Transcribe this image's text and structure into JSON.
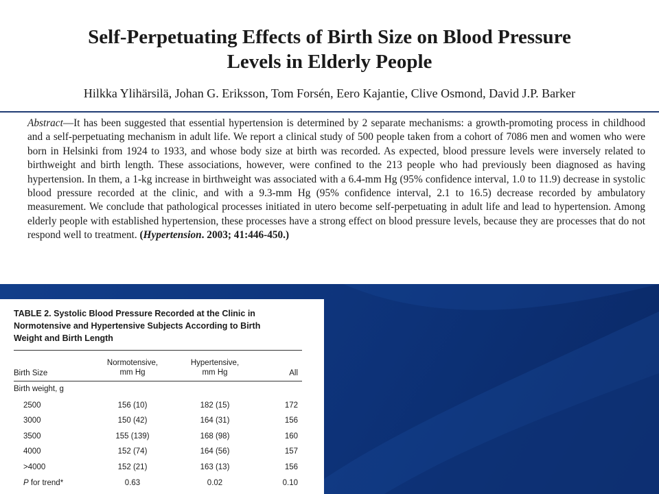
{
  "paper": {
    "title_lines": [
      "Self-Perpetuating Effects of Birth Size on Blood Pressure",
      "Levels in Elderly People"
    ],
    "authors": "Hilkka Ylihärsilä, Johan G. Eriksson, Tom Forsén, Eero Kajantie, Clive Osmond, David J.P. Barker"
  },
  "abstract": {
    "label": "Abstract",
    "dash": "—",
    "text": "It has been suggested that essential hypertension is determined by 2 separate mechanisms: a growth-promoting process in childhood and a self-perpetuating mechanism in adult life. We report a clinical study of 500 people taken from a cohort of 7086 men and women who were born in Helsinki from 1924 to 1933, and whose body size at birth was recorded. As expected, blood pressure levels were inversely related to birthweight and birth length. These associations, however, were confined to the 213 people who had previously been diagnosed as having hypertension. In them, a 1-kg increase in birthweight was associated with a 6.4-mm Hg (95% confidence interval, 1.0 to 11.9) decrease in systolic blood pressure recorded at the clinic, and with a 9.3-mm Hg (95% confidence interval, 2.1 to 16.5) decrease recorded by ambulatory measurement. We conclude that pathological processes initiated in utero become self-perpetuating in adult life and lead to hypertension. Among elderly people with established hypertension, these processes have a strong effect on blood pressure levels, because they are processes that do not respond well to treatment. ",
    "cite_open": "(",
    "cite_journal": "Hypertension",
    "cite_rest": ". 2003; 41:446-450.)"
  },
  "table": {
    "caption_lines": [
      "TABLE 2.  Systolic Blood Pressure Recorded at the Clinic in",
      "Normotensive and Hypertensive Subjects According to Birth",
      "Weight and Birth Length"
    ],
    "headers": {
      "col1": "Birth Size",
      "col2": [
        "Normotensive,",
        "mm Hg"
      ],
      "col3": [
        "Hypertensive,",
        "mm Hg"
      ],
      "col4": "All"
    },
    "group_label": "Birth weight, g",
    "rows": [
      {
        "size": "2500",
        "normo": "156 (10)",
        "hyper": "182 (15)",
        "all": "172"
      },
      {
        "size": "3000",
        "normo": "150 (42)",
        "hyper": "164 (31)",
        "all": "156"
      },
      {
        "size": "3500",
        "normo": "155 (139)",
        "hyper": "168 (98)",
        "all": "160"
      },
      {
        "size": "4000",
        "normo": "152 (74)",
        "hyper": "164 (56)",
        "all": "157"
      },
      {
        "size": ">4000",
        "normo": "152 (21)",
        "hyper": "163 (13)",
        "all": "156"
      }
    ],
    "trend": {
      "label_p": "P",
      "label_rest": " for trend*",
      "normo": "0.63",
      "hyper": "0.02",
      "all": "0.10"
    }
  },
  "colors": {
    "band": "#0d3278",
    "rule": "#1f3b73"
  }
}
